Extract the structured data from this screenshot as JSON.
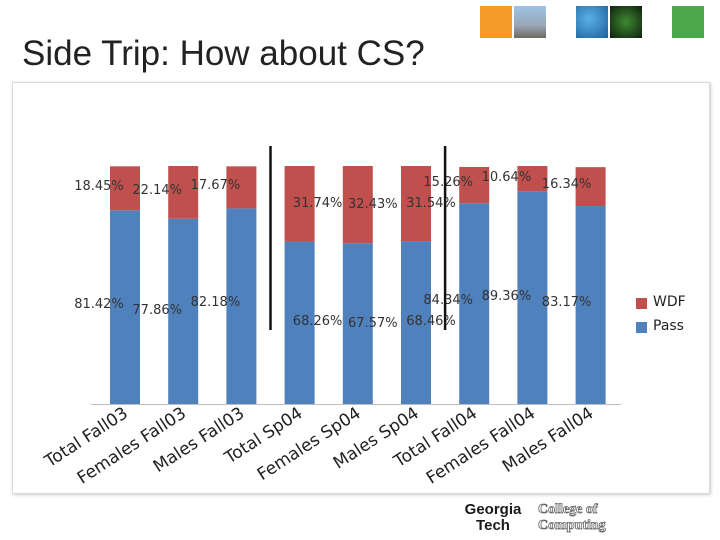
{
  "slide": {
    "title": "Side Trip: How about CS?"
  },
  "header_images": [
    {
      "icon": "campus-photo-icon",
      "color": "#f39a2b"
    },
    {
      "icon": "building-photo-icon",
      "color": "#9aa7b6"
    },
    {
      "icon": "blue-tile-icon",
      "color": "#2b7bbf"
    },
    {
      "icon": "circuit-tile-icon",
      "color": "#1a3a1a"
    },
    {
      "icon": "green-tile-icon",
      "color": "#4aa84a"
    }
  ],
  "logo": {
    "line1": "Georgia",
    "line2": "Tech",
    "college_line1": "College of",
    "college_line2": "Computing"
  },
  "chart_data": {
    "type": "bar",
    "stacked": true,
    "categories": [
      "Total Fall03",
      "Females Fall03",
      "Males Fall03",
      "Total Sp04",
      "Females Sp04",
      "Males Sp04",
      "Total Fall04",
      "Females Fall04",
      "Males Fall04"
    ],
    "series": [
      {
        "name": "Pass",
        "color": "#4f81bd",
        "values": [
          81.42,
          77.86,
          82.18,
          68.26,
          67.57,
          68.46,
          84.34,
          89.36,
          83.17
        ],
        "labels": [
          "81.42%",
          "77.86%",
          "82.18%",
          "68.26%",
          "67.57%",
          "68.46%",
          "84.34%",
          "89.36%",
          "83.17%"
        ]
      },
      {
        "name": "WDF",
        "color": "#c0504d",
        "values": [
          18.45,
          22.14,
          17.67,
          31.74,
          32.43,
          31.54,
          15.26,
          10.64,
          16.34
        ],
        "labels": [
          "18.45%",
          "22.14%",
          "17.67%",
          "31.74%",
          "32.43%",
          "31.54%",
          "15.26%",
          "10.64%",
          "16.34%"
        ]
      }
    ],
    "legend": [
      "WDF",
      "Pass"
    ],
    "legend_position": "right",
    "ylim": [
      0,
      100
    ],
    "grid": false,
    "separators_after": [
      "Males Fall03",
      "Males Sp04"
    ],
    "title": "",
    "xlabel": "",
    "ylabel": ""
  }
}
